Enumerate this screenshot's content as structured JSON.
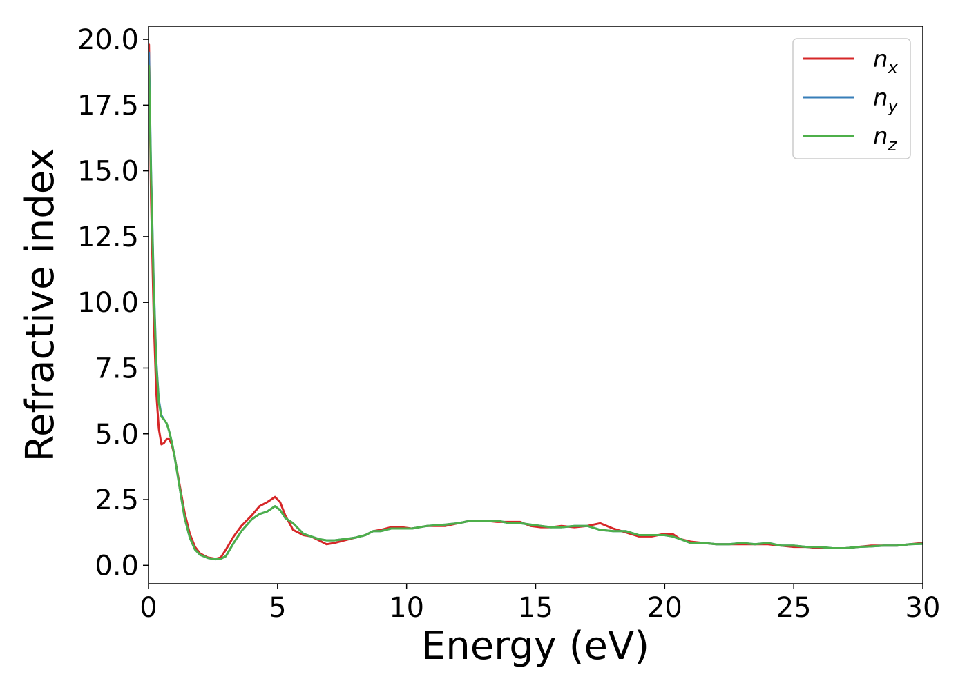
{
  "chart_data": {
    "type": "line",
    "title": "",
    "xlabel": "Energy (eV)",
    "ylabel": "Refractive index",
    "xlim": [
      0,
      30
    ],
    "ylim": [
      -0.7,
      20.5
    ],
    "xticks": [
      0,
      5,
      10,
      15,
      20,
      25,
      30
    ],
    "yticks": [
      0.0,
      2.5,
      5.0,
      7.5,
      10.0,
      12.5,
      15.0,
      17.5,
      20.0
    ],
    "xtick_labels": [
      "0",
      "5",
      "10",
      "15",
      "20",
      "25",
      "30"
    ],
    "ytick_labels": [
      "0.0",
      "2.5",
      "5.0",
      "7.5",
      "10.0",
      "12.5",
      "15.0",
      "17.5",
      "20.0"
    ],
    "grid": false,
    "legend_position": "top-right",
    "series": [
      {
        "name": "n_x",
        "legend_base": "n",
        "legend_sub": "x",
        "color": "#d62728",
        "x": [
          0.02,
          0.1,
          0.2,
          0.3,
          0.4,
          0.5,
          0.6,
          0.7,
          0.8,
          0.9,
          1.0,
          1.2,
          1.4,
          1.6,
          1.8,
          2.0,
          2.3,
          2.6,
          2.8,
          3.0,
          3.3,
          3.6,
          4.0,
          4.3,
          4.6,
          4.9,
          5.1,
          5.3,
          5.6,
          6.0,
          6.3,
          6.6,
          6.9,
          7.2,
          7.6,
          8.0,
          8.4,
          8.7,
          9.0,
          9.4,
          9.8,
          10.2,
          10.8,
          11.5,
          12.0,
          12.5,
          13.0,
          13.5,
          14.0,
          14.4,
          14.8,
          15.2,
          15.6,
          16.0,
          16.5,
          17.0,
          17.5,
          18.0,
          18.5,
          19.0,
          19.5,
          20.0,
          20.3,
          20.6,
          21.0,
          21.5,
          22.0,
          22.5,
          23.0,
          23.5,
          24.0,
          24.5,
          25.0,
          25.5,
          26.0,
          26.5,
          27.0,
          27.5,
          28.0,
          28.5,
          29.0,
          29.5,
          30.0
        ],
        "y": [
          19.8,
          14.0,
          9.5,
          6.6,
          5.2,
          4.6,
          4.65,
          4.8,
          4.8,
          4.6,
          4.2,
          3.1,
          2.0,
          1.2,
          0.7,
          0.45,
          0.3,
          0.25,
          0.3,
          0.6,
          1.1,
          1.5,
          1.9,
          2.25,
          2.4,
          2.6,
          2.4,
          1.9,
          1.35,
          1.15,
          1.1,
          0.95,
          0.8,
          0.85,
          0.95,
          1.05,
          1.15,
          1.3,
          1.35,
          1.45,
          1.45,
          1.4,
          1.5,
          1.5,
          1.6,
          1.7,
          1.7,
          1.65,
          1.65,
          1.65,
          1.5,
          1.45,
          1.45,
          1.5,
          1.45,
          1.5,
          1.6,
          1.4,
          1.25,
          1.1,
          1.1,
          1.2,
          1.2,
          1.0,
          0.9,
          0.85,
          0.8,
          0.8,
          0.8,
          0.8,
          0.8,
          0.75,
          0.7,
          0.7,
          0.65,
          0.65,
          0.65,
          0.7,
          0.75,
          0.75,
          0.75,
          0.8,
          0.85
        ]
      },
      {
        "name": "n_y",
        "legend_base": "n",
        "legend_sub": "y",
        "color": "#377eb8",
        "x": [
          0.02,
          0.1,
          0.2,
          0.3,
          0.4,
          0.5,
          0.6,
          0.7,
          0.8,
          0.9,
          1.0,
          1.2,
          1.4,
          1.6,
          1.8,
          2.0,
          2.3,
          2.6,
          2.8,
          3.0,
          3.3,
          3.6,
          4.0,
          4.3,
          4.6,
          4.9,
          5.1,
          5.3,
          5.6,
          6.0,
          6.3,
          6.6,
          6.9,
          7.2,
          7.6,
          8.0,
          8.4,
          8.7,
          9.0,
          9.4,
          9.8,
          10.2,
          10.8,
          11.5,
          12.0,
          12.5,
          13.0,
          13.5,
          14.0,
          14.4,
          14.8,
          15.2,
          15.6,
          16.0,
          16.5,
          17.0,
          17.5,
          18.0,
          18.5,
          19.0,
          19.5,
          20.0,
          20.3,
          20.6,
          21.0,
          21.5,
          22.0,
          22.5,
          23.0,
          23.5,
          24.0,
          24.5,
          25.0,
          25.5,
          26.0,
          26.5,
          27.0,
          27.5,
          28.0,
          28.5,
          29.0,
          29.5,
          30.0
        ],
        "y": [
          19.5,
          15.0,
          10.8,
          7.8,
          6.3,
          5.7,
          5.55,
          5.4,
          5.1,
          4.7,
          4.2,
          3.0,
          1.8,
          1.05,
          0.6,
          0.4,
          0.28,
          0.23,
          0.25,
          0.35,
          0.85,
          1.3,
          1.75,
          1.95,
          2.05,
          2.25,
          2.1,
          1.8,
          1.6,
          1.2,
          1.1,
          1.0,
          0.95,
          0.95,
          1.0,
          1.05,
          1.15,
          1.3,
          1.3,
          1.4,
          1.4,
          1.4,
          1.5,
          1.55,
          1.6,
          1.7,
          1.7,
          1.7,
          1.6,
          1.6,
          1.55,
          1.5,
          1.45,
          1.45,
          1.5,
          1.5,
          1.35,
          1.3,
          1.3,
          1.15,
          1.15,
          1.15,
          1.1,
          1.0,
          0.85,
          0.85,
          0.8,
          0.8,
          0.85,
          0.8,
          0.85,
          0.75,
          0.75,
          0.7,
          0.7,
          0.65,
          0.65,
          0.7,
          0.72,
          0.75,
          0.75,
          0.8,
          0.82
        ]
      },
      {
        "name": "n_z",
        "legend_base": "n",
        "legend_sub": "z",
        "color": "#4daf4a",
        "x": [
          0.02,
          0.1,
          0.2,
          0.3,
          0.4,
          0.5,
          0.6,
          0.7,
          0.8,
          0.9,
          1.0,
          1.2,
          1.4,
          1.6,
          1.8,
          2.0,
          2.3,
          2.6,
          2.8,
          3.0,
          3.3,
          3.6,
          4.0,
          4.3,
          4.6,
          4.9,
          5.1,
          5.3,
          5.6,
          6.0,
          6.3,
          6.6,
          6.9,
          7.2,
          7.6,
          8.0,
          8.4,
          8.7,
          9.0,
          9.4,
          9.8,
          10.2,
          10.8,
          11.5,
          12.0,
          12.5,
          13.0,
          13.5,
          14.0,
          14.4,
          14.8,
          15.2,
          15.6,
          16.0,
          16.5,
          17.0,
          17.5,
          18.0,
          18.5,
          19.0,
          19.5,
          20.0,
          20.3,
          20.6,
          21.0,
          21.5,
          22.0,
          22.5,
          23.0,
          23.5,
          24.0,
          24.5,
          25.0,
          25.5,
          26.0,
          26.5,
          27.0,
          27.5,
          28.0,
          28.5,
          29.0,
          29.5,
          30.0
        ],
        "y": [
          19.0,
          14.8,
          10.6,
          7.7,
          6.2,
          5.65,
          5.55,
          5.4,
          5.1,
          4.7,
          4.2,
          3.0,
          1.8,
          1.05,
          0.6,
          0.4,
          0.28,
          0.23,
          0.25,
          0.35,
          0.85,
          1.3,
          1.75,
          1.95,
          2.05,
          2.25,
          2.1,
          1.8,
          1.6,
          1.2,
          1.1,
          1.0,
          0.95,
          0.95,
          1.0,
          1.05,
          1.15,
          1.3,
          1.3,
          1.4,
          1.4,
          1.4,
          1.5,
          1.55,
          1.6,
          1.7,
          1.7,
          1.7,
          1.6,
          1.6,
          1.55,
          1.5,
          1.45,
          1.45,
          1.5,
          1.5,
          1.35,
          1.3,
          1.3,
          1.15,
          1.15,
          1.15,
          1.1,
          1.0,
          0.85,
          0.85,
          0.8,
          0.8,
          0.85,
          0.8,
          0.85,
          0.75,
          0.75,
          0.7,
          0.7,
          0.65,
          0.65,
          0.7,
          0.72,
          0.75,
          0.75,
          0.8,
          0.82
        ]
      }
    ]
  }
}
